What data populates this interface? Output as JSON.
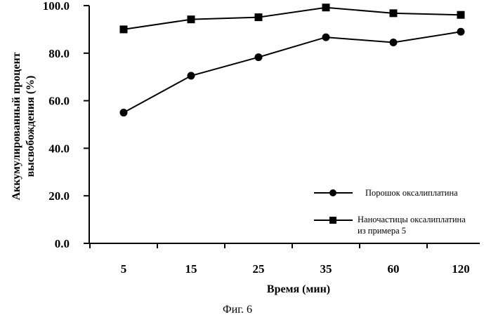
{
  "chart_data": {
    "type": "line",
    "categories": [
      "5",
      "15",
      "25",
      "35",
      "60",
      "120"
    ],
    "ylim": [
      0,
      100
    ],
    "yticks": [
      "0.0",
      "20.0",
      "40.0",
      "60.0",
      "80.0",
      "100.0"
    ],
    "xlabel": "Время (мин)",
    "ylabel_line1": "Аккумулированный процент",
    "ylabel_line2": "высвобождения (%)",
    "series": [
      {
        "name": "Порошок оксалиплатина",
        "marker": "circle",
        "values": [
          55.0,
          70.5,
          78.3,
          86.7,
          84.5,
          89.0
        ]
      },
      {
        "name_line1": "Наночастицы оксалиплатина",
        "name_line2": "из примера 5",
        "marker": "square",
        "values": [
          90.0,
          94.2,
          95.1,
          99.2,
          96.8,
          96.1
        ]
      }
    ],
    "legend_position": "bottom-right",
    "line_color": "#000000"
  },
  "caption": "Фиг. 6"
}
